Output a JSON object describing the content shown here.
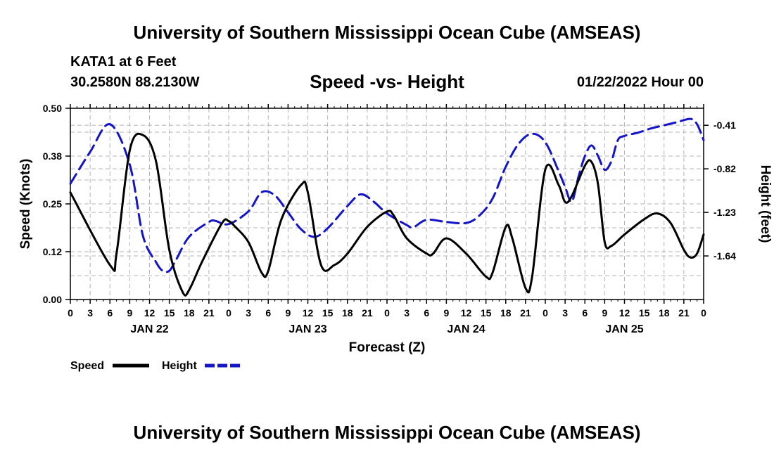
{
  "header": {
    "title": "University of Southern Mississippi Ocean Cube (AMSEAS)",
    "station": "KATA1 at 6 Feet",
    "location": "30.2580N  88.2130W",
    "date": "01/22/2022 Hour 00"
  },
  "footer": {
    "title": "University of Southern Mississippi Ocean Cube (AMSEAS)"
  },
  "chart_data": {
    "type": "line",
    "title": "Speed -vs- Height",
    "xlabel": "Forecast (Z)",
    "ylabel": "Speed (Knots)",
    "ylabel_right": "Height (feet)",
    "x_range": [
      0,
      96
    ],
    "ylim": [
      0,
      0.5
    ],
    "ylim_right": [
      -2.05,
      -0.25
    ],
    "x_tick_labels": [
      "0",
      "3",
      "6",
      "9",
      "12",
      "15",
      "18",
      "21",
      "0",
      "3",
      "6",
      "9",
      "12",
      "15",
      "18",
      "21",
      "0",
      "3",
      "6",
      "9",
      "12",
      "15",
      "18",
      "21",
      "0",
      "3",
      "6",
      "9",
      "12",
      "15",
      "18",
      "21",
      "0"
    ],
    "day_labels": [
      {
        "label": "JAN 22",
        "x": 12
      },
      {
        "label": "JAN 23",
        "x": 36
      },
      {
        "label": "JAN 24",
        "x": 60
      },
      {
        "label": "JAN 25",
        "x": 84
      }
    ],
    "y_ticks": [
      {
        "value": 0.0,
        "label": "0.00"
      },
      {
        "value": 0.125,
        "label": "0.12"
      },
      {
        "value": 0.25,
        "label": "0.25"
      },
      {
        "value": 0.375,
        "label": "0.38"
      },
      {
        "value": 0.5,
        "label": "0.50"
      }
    ],
    "y_ticks_right": [
      {
        "value": -0.41,
        "label": "-0.41"
      },
      {
        "value": -0.82,
        "label": "-0.82"
      },
      {
        "value": -1.23,
        "label": "-1.23"
      },
      {
        "value": -1.64,
        "label": "-1.64"
      }
    ],
    "grid": true,
    "legend_position": "bottom-left",
    "series": [
      {
        "name": "Speed",
        "color": "#000000",
        "dash": "solid",
        "axis": "left",
        "points": [
          [
            0,
            0.28
          ],
          [
            6,
            0.09
          ],
          [
            7,
            0.12
          ],
          [
            9,
            0.39
          ],
          [
            11,
            0.43
          ],
          [
            13,
            0.36
          ],
          [
            15,
            0.13
          ],
          [
            17,
            0.02
          ],
          [
            18,
            0.025
          ],
          [
            20,
            0.1
          ],
          [
            23,
            0.2
          ],
          [
            24,
            0.205
          ],
          [
            25,
            0.19
          ],
          [
            27,
            0.15
          ],
          [
            29,
            0.07
          ],
          [
            30,
            0.075
          ],
          [
            32,
            0.21
          ],
          [
            35,
            0.3
          ],
          [
            36,
            0.28
          ],
          [
            38,
            0.09
          ],
          [
            40,
            0.09
          ],
          [
            42,
            0.12
          ],
          [
            45,
            0.19
          ],
          [
            48,
            0.23
          ],
          [
            49,
            0.22
          ],
          [
            51,
            0.16
          ],
          [
            54,
            0.12
          ],
          [
            55,
            0.12
          ],
          [
            57,
            0.16
          ],
          [
            60,
            0.12
          ],
          [
            63,
            0.06
          ],
          [
            64,
            0.07
          ],
          [
            66,
            0.19
          ],
          [
            67,
            0.16
          ],
          [
            69,
            0.03
          ],
          [
            70,
            0.06
          ],
          [
            72,
            0.34
          ],
          [
            74,
            0.3
          ],
          [
            75,
            0.255
          ],
          [
            76,
            0.27
          ],
          [
            78,
            0.35
          ],
          [
            79,
            0.36
          ],
          [
            80,
            0.3
          ],
          [
            81,
            0.15
          ],
          [
            82,
            0.14
          ],
          [
            84,
            0.17
          ],
          [
            87,
            0.21
          ],
          [
            89,
            0.225
          ],
          [
            91,
            0.2
          ],
          [
            93,
            0.13
          ],
          [
            94,
            0.11
          ],
          [
            95,
            0.12
          ],
          [
            96,
            0.17
          ]
        ]
      },
      {
        "name": "Height",
        "color": "#1414c8",
        "dash": "dashed",
        "axis": "right",
        "points": [
          [
            0,
            -0.96
          ],
          [
            3,
            -0.66
          ],
          [
            6,
            -0.4
          ],
          [
            9,
            -0.78
          ],
          [
            11,
            -1.45
          ],
          [
            13,
            -1.7
          ],
          [
            14,
            -1.78
          ],
          [
            15,
            -1.78
          ],
          [
            16,
            -1.68
          ],
          [
            18,
            -1.46
          ],
          [
            21,
            -1.32
          ],
          [
            22,
            -1.31
          ],
          [
            24,
            -1.34
          ],
          [
            27,
            -1.22
          ],
          [
            29,
            -1.04
          ],
          [
            31,
            -1.07
          ],
          [
            33,
            -1.23
          ],
          [
            35,
            -1.39
          ],
          [
            37,
            -1.46
          ],
          [
            39,
            -1.38
          ],
          [
            42,
            -1.17
          ],
          [
            44,
            -1.06
          ],
          [
            46,
            -1.13
          ],
          [
            48,
            -1.24
          ],
          [
            51,
            -1.35
          ],
          [
            52,
            -1.37
          ],
          [
            54,
            -1.3
          ],
          [
            57,
            -1.32
          ],
          [
            60,
            -1.33
          ],
          [
            62,
            -1.26
          ],
          [
            64,
            -1.1
          ],
          [
            66,
            -0.8
          ],
          [
            68,
            -0.58
          ],
          [
            70,
            -0.49
          ],
          [
            72,
            -0.57
          ],
          [
            74,
            -0.84
          ],
          [
            75,
            -0.99
          ],
          [
            76,
            -1.13
          ],
          [
            77,
            -0.9
          ],
          [
            78,
            -0.7
          ],
          [
            79,
            -0.6
          ],
          [
            80,
            -0.7
          ],
          [
            81,
            -0.83
          ],
          [
            82,
            -0.75
          ],
          [
            83,
            -0.55
          ],
          [
            84,
            -0.51
          ],
          [
            86,
            -0.48
          ],
          [
            88,
            -0.44
          ],
          [
            90,
            -0.41
          ],
          [
            92,
            -0.38
          ],
          [
            94,
            -0.35
          ],
          [
            95,
            -0.4
          ],
          [
            96,
            -0.55
          ]
        ]
      }
    ]
  }
}
